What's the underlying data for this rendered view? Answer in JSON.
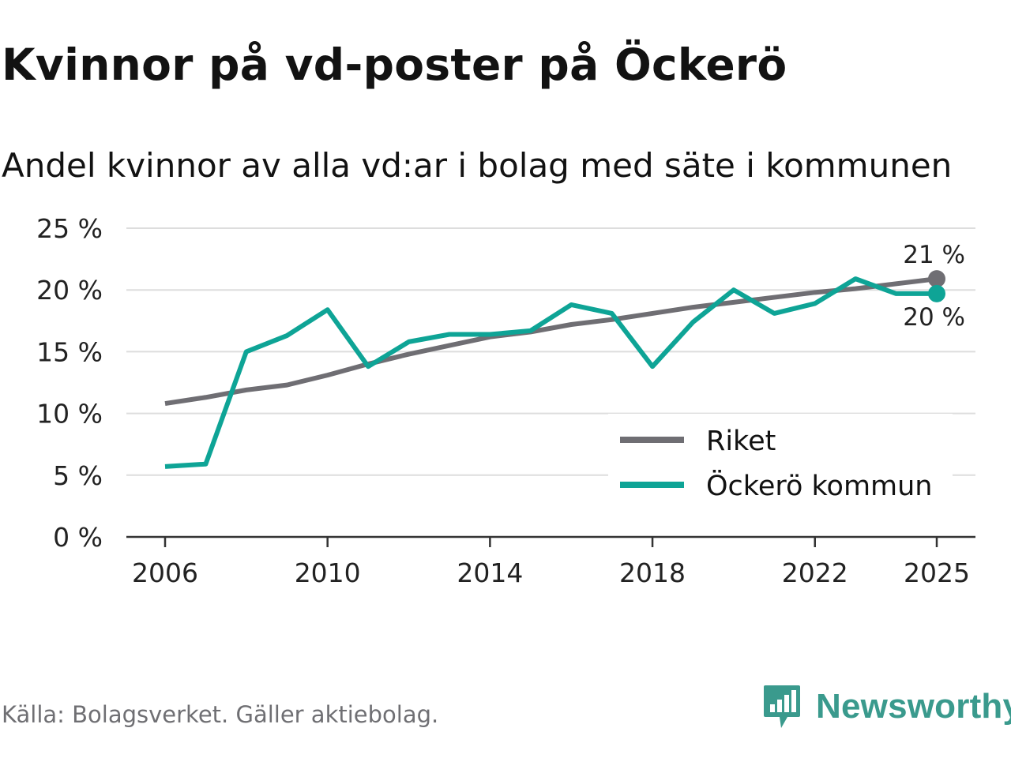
{
  "title": "Kvinnor på vd-poster på Öckerö",
  "subtitle": "Andel kvinnor av alla vd:ar i bolag med säte i kommunen",
  "source": "Källa: Bolagsverket. Gäller aktiebolag.",
  "brand": {
    "name": "Newsworthy",
    "color": "#3a9a8d"
  },
  "chart_data": {
    "type": "line",
    "x": [
      2006,
      2007,
      2008,
      2009,
      2010,
      2011,
      2012,
      2013,
      2014,
      2015,
      2016,
      2017,
      2018,
      2019,
      2020,
      2021,
      2022,
      2023,
      2024,
      2025
    ],
    "series": [
      {
        "name": "Riket",
        "color": "#6f6e73",
        "values": [
          10.8,
          11.3,
          11.9,
          12.3,
          13.1,
          14.0,
          14.8,
          15.5,
          16.2,
          16.6,
          17.2,
          17.6,
          18.1,
          18.6,
          19.0,
          19.4,
          19.8,
          20.1,
          20.5,
          20.9
        ]
      },
      {
        "name": "Öckerö kommun",
        "color": "#0ea496",
        "values": [
          5.7,
          5.9,
          15.0,
          16.3,
          18.4,
          13.8,
          15.8,
          16.4,
          16.4,
          16.7,
          18.8,
          18.1,
          13.8,
          17.4,
          20.0,
          18.1,
          18.9,
          20.9,
          19.7,
          19.7
        ]
      }
    ],
    "end_labels": [
      "21 %",
      "20 %"
    ],
    "yticks": [
      0,
      5,
      10,
      15,
      20,
      25
    ],
    "ytick_labels": [
      "0 %",
      "5 %",
      "10 %",
      "15 %",
      "20 %",
      "25 %"
    ],
    "xticks": [
      2006,
      2010,
      2014,
      2018,
      2022,
      2025
    ],
    "xtick_labels": [
      "2006",
      "2010",
      "2014",
      "2018",
      "2022",
      "2025"
    ],
    "ylim": [
      0,
      25
    ],
    "xlim": [
      2006,
      2025
    ],
    "legend": "bottom-right",
    "grid": true
  }
}
